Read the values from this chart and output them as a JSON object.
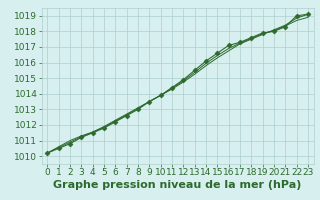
{
  "x": [
    0,
    1,
    2,
    3,
    4,
    5,
    6,
    7,
    8,
    9,
    10,
    11,
    12,
    13,
    14,
    15,
    16,
    17,
    18,
    19,
    20,
    21,
    22,
    23
  ],
  "y_main": [
    1010.2,
    1010.5,
    1010.8,
    1011.2,
    1011.5,
    1011.8,
    1012.2,
    1012.6,
    1013.0,
    1013.5,
    1013.9,
    1014.4,
    1014.9,
    1015.5,
    1016.1,
    1016.6,
    1017.1,
    1017.3,
    1017.6,
    1017.9,
    1018.0,
    1018.3,
    1019.0,
    1019.1
  ],
  "y_line2": [
    1010.2,
    1010.6,
    1011.0,
    1011.3,
    1011.55,
    1011.9,
    1012.3,
    1012.7,
    1013.1,
    1013.5,
    1013.9,
    1014.3,
    1014.75,
    1015.25,
    1015.8,
    1016.3,
    1016.75,
    1017.2,
    1017.5,
    1017.8,
    1018.1,
    1018.4,
    1018.85,
    1019.1
  ],
  "y_line3": [
    1010.2,
    1010.55,
    1010.9,
    1011.25,
    1011.525,
    1011.85,
    1012.25,
    1012.65,
    1013.05,
    1013.5,
    1013.9,
    1014.35,
    1014.82,
    1015.37,
    1015.95,
    1016.45,
    1016.9,
    1017.25,
    1017.55,
    1017.85,
    1018.05,
    1018.35,
    1018.7,
    1018.9
  ],
  "ylim": [
    1009.5,
    1019.5
  ],
  "xlim": [
    -0.5,
    23.5
  ],
  "yticks": [
    1010,
    1011,
    1012,
    1013,
    1014,
    1015,
    1016,
    1017,
    1018,
    1019
  ],
  "xticks": [
    0,
    1,
    2,
    3,
    4,
    5,
    6,
    7,
    8,
    9,
    10,
    11,
    12,
    13,
    14,
    15,
    16,
    17,
    18,
    19,
    20,
    21,
    22,
    23
  ],
  "xlabel": "Graphe pression niveau de la mer (hPa)",
  "line_color": "#2d6a2d",
  "marker": "D",
  "marker_size": 2.5,
  "bg_color": "#d8efef",
  "grid_color": "#aecece",
  "tick_color": "#2d6a2d",
  "label_color": "#2d6a2d",
  "tick_fontsize": 6.5,
  "xlabel_fontsize": 8
}
